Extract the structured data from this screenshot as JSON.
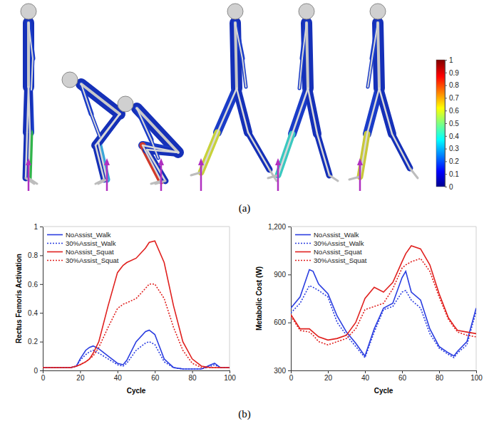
{
  "panel_a": {
    "label": "(a)",
    "colorbar": {
      "range": [
        0,
        1
      ],
      "ticks": [
        0,
        0.1,
        0.2,
        0.3,
        0.4,
        0.5,
        0.6,
        0.7,
        0.8,
        0.9,
        1
      ]
    }
  },
  "panel_b": {
    "label": "(b)"
  },
  "chart_data": [
    {
      "type": "line",
      "x_label": "Cycle",
      "y_label": "Rectus Femoris Activation",
      "x": [
        0,
        5,
        10,
        15,
        18,
        20,
        23,
        25,
        27,
        30,
        35,
        40,
        43,
        45,
        50,
        55,
        57,
        60,
        65,
        70,
        75,
        80,
        85,
        90,
        92,
        95,
        100
      ],
      "series": [
        {
          "name": "NoAssist_Walk",
          "color": "#2a3de0",
          "line_style": "solid",
          "values": [
            0.02,
            0.02,
            0.02,
            0.02,
            0.03,
            0.08,
            0.14,
            0.16,
            0.17,
            0.15,
            0.1,
            0.05,
            0.04,
            0.07,
            0.2,
            0.27,
            0.28,
            0.25,
            0.08,
            0.02,
            0.01,
            0.01,
            0.01,
            0.04,
            0.05,
            0.02,
            0.02
          ]
        },
        {
          "name": "30%Assist_Walk",
          "color": "#2a3de0",
          "line_style": "dotted",
          "values": [
            0.02,
            0.02,
            0.02,
            0.02,
            0.03,
            0.07,
            0.11,
            0.13,
            0.14,
            0.12,
            0.08,
            0.04,
            0.03,
            0.05,
            0.14,
            0.19,
            0.2,
            0.18,
            0.06,
            0.02,
            0.01,
            0.01,
            0.01,
            0.03,
            0.04,
            0.02,
            0.02
          ]
        },
        {
          "name": "NoAssist_Squat",
          "color": "#e0201e",
          "line_style": "solid",
          "values": [
            0.02,
            0.02,
            0.02,
            0.02,
            0.03,
            0.04,
            0.06,
            0.08,
            0.12,
            0.2,
            0.45,
            0.68,
            0.73,
            0.75,
            0.78,
            0.85,
            0.89,
            0.9,
            0.75,
            0.45,
            0.2,
            0.08,
            0.03,
            0.02,
            0.02,
            0.02,
            0.02
          ]
        },
        {
          "name": "30%Assist_Squat",
          "color": "#e0201e",
          "line_style": "dotted",
          "values": [
            0.02,
            0.02,
            0.02,
            0.02,
            0.03,
            0.04,
            0.06,
            0.08,
            0.1,
            0.16,
            0.3,
            0.43,
            0.46,
            0.47,
            0.5,
            0.57,
            0.6,
            0.6,
            0.5,
            0.3,
            0.14,
            0.05,
            0.02,
            0.02,
            0.02,
            0.02,
            0.02
          ]
        }
      ],
      "xlim": [
        0,
        100
      ],
      "xticks": [
        0,
        20,
        40,
        60,
        80,
        100
      ],
      "ylim": [
        0,
        1
      ],
      "yticks": [
        0,
        0.2,
        0.4,
        0.6,
        0.8,
        1
      ],
      "legend": "upper left",
      "grid": false
    },
    {
      "type": "line",
      "x_label": "Cycle",
      "y_label": "Metabolic Cost (W)",
      "x": [
        0,
        5,
        10,
        12,
        15,
        20,
        25,
        30,
        35,
        40,
        45,
        50,
        55,
        60,
        62,
        65,
        70,
        75,
        80,
        85,
        88,
        90,
        95,
        100
      ],
      "series": [
        {
          "name": "NoAssist_Walk",
          "color": "#2a3de0",
          "line_style": "solid",
          "values": [
            690,
            760,
            930,
            920,
            840,
            780,
            640,
            540,
            470,
            390,
            560,
            690,
            720,
            880,
            920,
            790,
            740,
            560,
            450,
            410,
            390,
            420,
            480,
            690
          ]
        },
        {
          "name": "30%Assist_Walk",
          "color": "#2a3de0",
          "line_style": "dotted",
          "values": [
            660,
            720,
            830,
            820,
            800,
            760,
            600,
            520,
            450,
            380,
            540,
            680,
            700,
            790,
            800,
            740,
            690,
            530,
            440,
            400,
            380,
            410,
            460,
            670
          ]
        },
        {
          "name": "NoAssist_Squat",
          "color": "#e0201e",
          "line_style": "solid",
          "values": [
            650,
            560,
            560,
            540,
            510,
            490,
            500,
            520,
            600,
            750,
            820,
            790,
            850,
            980,
            1030,
            1080,
            1060,
            960,
            780,
            630,
            580,
            550,
            540,
            530
          ]
        },
        {
          "name": "30%Assist_Squat",
          "color": "#e0201e",
          "line_style": "dotted",
          "values": [
            640,
            550,
            540,
            520,
            480,
            460,
            480,
            500,
            560,
            680,
            700,
            720,
            810,
            940,
            960,
            980,
            1000,
            920,
            760,
            620,
            570,
            540,
            520,
            510
          ]
        }
      ],
      "xlim": [
        0,
        100
      ],
      "xticks": [
        0,
        20,
        40,
        60,
        80,
        100
      ],
      "ylim": [
        300,
        1200
      ],
      "yticks": [
        300,
        600,
        900,
        {
          "value": 1200,
          "label": "1,200"
        }
      ],
      "legend": "upper left",
      "grid": false
    }
  ]
}
